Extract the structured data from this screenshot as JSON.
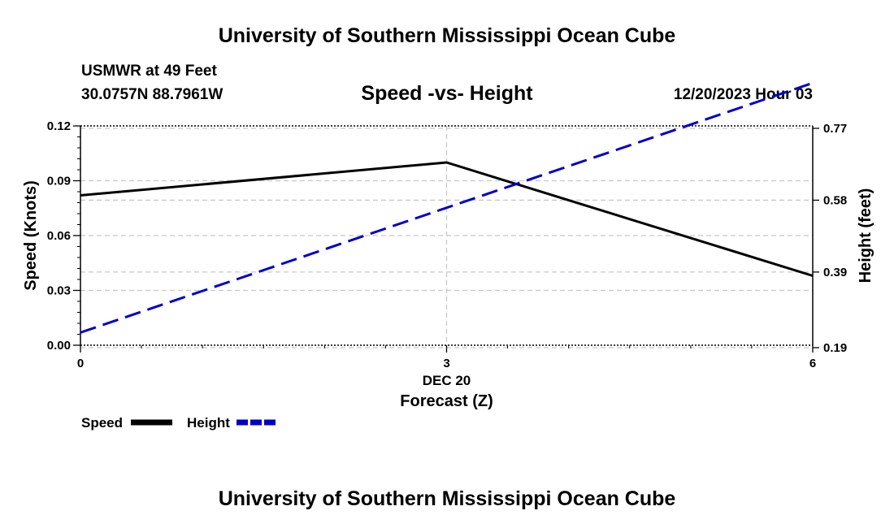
{
  "page": {
    "title_top": "University of Southern Mississippi Ocean Cube",
    "title_bottom": "University of Southern Mississippi Ocean Cube",
    "station_line": "USMWR at 49 Feet",
    "coords_line": "30.0757N  88.7961W",
    "date_line": "12/20/2023 Hour 03"
  },
  "chart_data": {
    "type": "line",
    "title": "Speed -vs- Height",
    "xlabel_date": "DEC 20",
    "xlabel": "Forecast (Z)",
    "ylabel": "Speed (Knots)",
    "y2label": "Height (feet)",
    "xlim": [
      0,
      6
    ],
    "ylim": [
      0,
      0.12
    ],
    "y2lim": [
      0.19,
      0.77
    ],
    "x_ticks": [
      0,
      3,
      6
    ],
    "x_tick_labels": [
      "0",
      "3",
      "6"
    ],
    "y_ticks": [
      0,
      0.03,
      0.06,
      0.09,
      0.12
    ],
    "y_tick_labels": [
      "0.00",
      "0.03",
      "0.06",
      "0.09",
      "0.12"
    ],
    "y2_ticks": [
      0.19,
      0.39,
      0.58,
      0.77
    ],
    "y2_tick_labels": [
      "0.19",
      "0.39",
      "0.58",
      "0.77"
    ],
    "series": [
      {
        "name": "Speed",
        "axis": "left",
        "color": "#000000",
        "dash": false,
        "x": [
          0,
          3,
          6
        ],
        "values": [
          0.082,
          0.1,
          0.038
        ]
      },
      {
        "name": "Height",
        "axis": "right",
        "color": "#0000cc",
        "dash": true,
        "x": [
          0,
          6
        ],
        "values": [
          0.23,
          0.89
        ]
      }
    ],
    "legend": [
      "Speed",
      "Height"
    ],
    "legend_position": "bottom-left"
  }
}
